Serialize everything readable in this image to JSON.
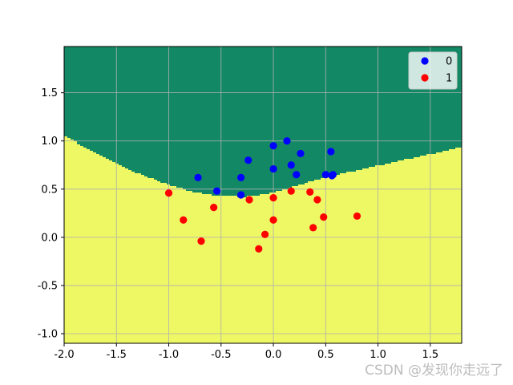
{
  "chart_data": {
    "type": "scatter",
    "title": "",
    "xlabel": "",
    "ylabel": "",
    "xlim": [
      -2.0,
      1.8
    ],
    "ylim": [
      -1.1,
      1.98
    ],
    "x_ticks": [
      "-2.0",
      "-1.5",
      "-1.0",
      "-0.5",
      "0.0",
      "0.5",
      "1.0",
      "1.5"
    ],
    "x_tick_values": [
      -2.0,
      -1.5,
      -1.0,
      -0.5,
      0.0,
      0.5,
      1.0,
      1.5
    ],
    "y_ticks": [
      "-1.0",
      "-0.5",
      "0.0",
      "0.5",
      "1.0",
      "1.5"
    ],
    "y_tick_values": [
      -1.0,
      -0.5,
      0.0,
      0.5,
      1.0,
      1.5
    ],
    "grid": true,
    "legend_position": "top-right",
    "decision_regions": {
      "upper_class": "0",
      "lower_class": "1",
      "upper_color": "#128865",
      "lower_color": "#eef764",
      "boundary": [
        [
          -2.0,
          1.07
        ],
        [
          -1.75,
          0.91
        ],
        [
          -1.5,
          0.77
        ],
        [
          -1.25,
          0.65
        ],
        [
          -1.0,
          0.55
        ],
        [
          -0.75,
          0.47
        ],
        [
          -0.5,
          0.43
        ],
        [
          -0.25,
          0.42
        ],
        [
          0.0,
          0.46
        ],
        [
          0.25,
          0.54
        ],
        [
          0.5,
          0.62
        ],
        [
          0.75,
          0.68
        ],
        [
          1.0,
          0.74
        ],
        [
          1.25,
          0.8
        ],
        [
          1.5,
          0.86
        ],
        [
          1.8,
          0.93
        ]
      ]
    },
    "series": [
      {
        "name": "0",
        "color": "#0000ff",
        "points": [
          [
            -0.72,
            0.62
          ],
          [
            -0.54,
            0.48
          ],
          [
            -0.31,
            0.62
          ],
          [
            -0.31,
            0.44
          ],
          [
            -0.24,
            0.8
          ],
          [
            0.0,
            0.95
          ],
          [
            0.0,
            0.71
          ],
          [
            0.13,
            1.0
          ],
          [
            0.17,
            0.75
          ],
          [
            0.22,
            0.65
          ],
          [
            0.26,
            0.87
          ],
          [
            0.5,
            0.65
          ],
          [
            0.55,
            0.89
          ],
          [
            0.56,
            0.64
          ],
          [
            0.57,
            0.65
          ]
        ]
      },
      {
        "name": "1",
        "color": "#ff0000",
        "points": [
          [
            -1.0,
            0.46
          ],
          [
            -0.86,
            0.18
          ],
          [
            -0.69,
            -0.04
          ],
          [
            -0.57,
            0.31
          ],
          [
            -0.23,
            0.39
          ],
          [
            -0.14,
            -0.12
          ],
          [
            -0.08,
            0.03
          ],
          [
            0.0,
            0.41
          ],
          [
            0.0,
            0.18
          ],
          [
            0.17,
            0.48
          ],
          [
            0.35,
            0.47
          ],
          [
            0.38,
            0.1
          ],
          [
            0.42,
            0.39
          ],
          [
            0.48,
            0.21
          ],
          [
            0.8,
            0.22
          ]
        ]
      }
    ]
  },
  "watermark": "CSDN @发现你走远了"
}
